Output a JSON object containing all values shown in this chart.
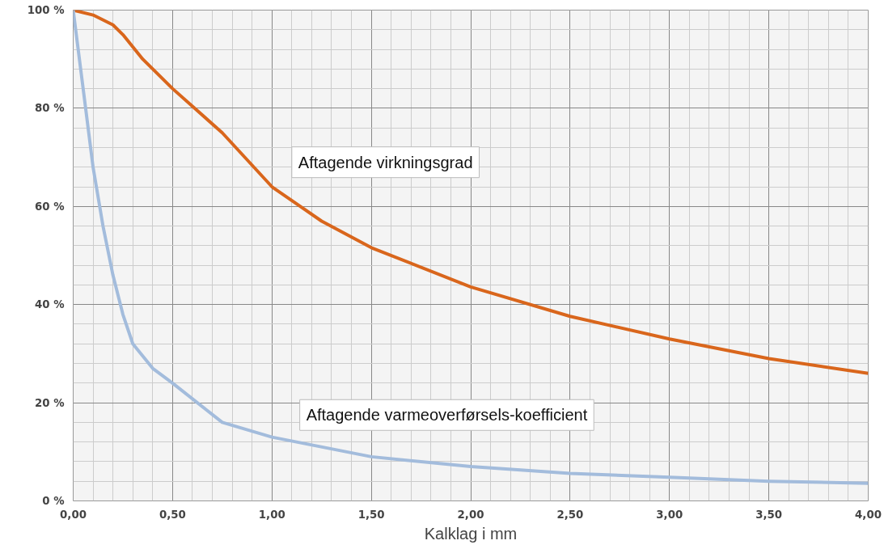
{
  "chart_data": {
    "type": "line",
    "xlabel": "Kalklag i mm",
    "series": [
      {
        "name": "Aftagende virkningsgrad",
        "color": "#d9661c",
        "x": [
          0,
          0.1,
          0.2,
          0.25,
          0.35,
          0.5,
          0.75,
          1.0,
          1.25,
          1.5,
          2.0,
          2.5,
          3.0,
          3.5,
          4.0
        ],
        "values": [
          100,
          99,
          97,
          95,
          90,
          84,
          75,
          64,
          57,
          51.6,
          43.6,
          37.6,
          33,
          29,
          26
        ]
      },
      {
        "name": "Aftagende varmeoverførsels-koefficient",
        "color": "#a3bcdc",
        "x": [
          0,
          0.05,
          0.1,
          0.15,
          0.2,
          0.25,
          0.3,
          0.4,
          0.5,
          0.75,
          1.0,
          1.5,
          2.0,
          2.5,
          3.0,
          3.5,
          4.0
        ],
        "values": [
          100,
          84,
          68,
          56,
          46,
          38,
          32,
          27,
          24,
          16,
          13,
          9,
          7,
          5.6,
          4.8,
          4,
          3.6
        ]
      }
    ],
    "xlim": [
      0,
      4
    ],
    "ylim": [
      0,
      100
    ],
    "xticks": [
      {
        "value": 0,
        "label": "0,00"
      },
      {
        "value": 0.5,
        "label": "0,50"
      },
      {
        "value": 1,
        "label": "1,00"
      },
      {
        "value": 1.5,
        "label": "1,50"
      },
      {
        "value": 2,
        "label": "2,00"
      },
      {
        "value": 2.5,
        "label": "2,50"
      },
      {
        "value": 3,
        "label": "3,00"
      },
      {
        "value": 3.5,
        "label": "3,50"
      },
      {
        "value": 4,
        "label": "4,00"
      }
    ],
    "yticks": [
      {
        "value": 0,
        "label": "0 %"
      },
      {
        "value": 20,
        "label": "20 %"
      },
      {
        "value": 40,
        "label": "40 %"
      },
      {
        "value": 60,
        "label": "60 %"
      },
      {
        "value": 80,
        "label": "80 %"
      },
      {
        "value": 100,
        "label": "100 %"
      }
    ],
    "grid": true,
    "line_style": "solid"
  }
}
